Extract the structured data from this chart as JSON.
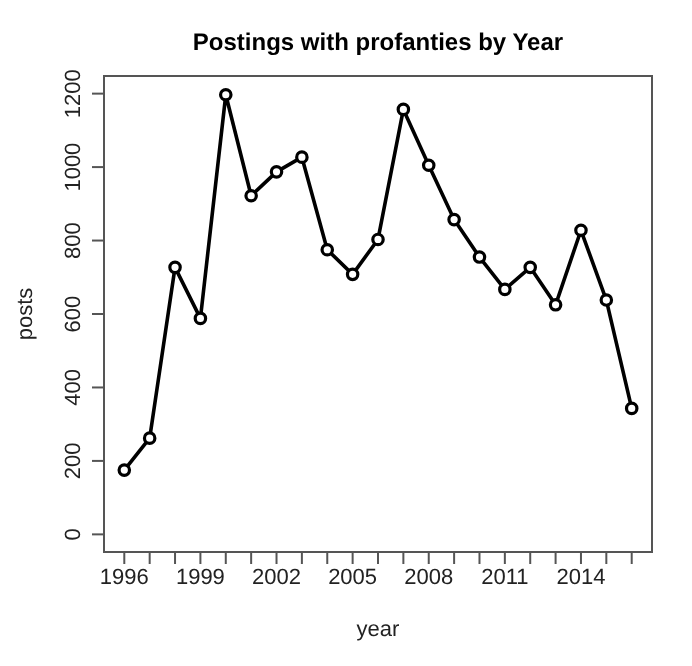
{
  "chart_data": {
    "type": "line",
    "title": "Postings with profanties by Year",
    "xlabel": "year",
    "ylabel": "posts",
    "x": [
      1996,
      1997,
      1998,
      1999,
      2000,
      2001,
      2002,
      2003,
      2004,
      2005,
      2006,
      2007,
      2008,
      2009,
      2010,
      2011,
      2012,
      2013,
      2014,
      2015,
      2016
    ],
    "series": [
      {
        "color": "#000000",
        "values": [
          175,
          262,
          727,
          588,
          1197,
          922,
          987,
          1027,
          775,
          708,
          803,
          1157,
          1005,
          857,
          755,
          667,
          727,
          625,
          828,
          638,
          343
        ]
      }
    ],
    "xlim": [
      1995.2,
      2016.8
    ],
    "xticks": [
      1996,
      {
        "value": 1997,
        "label": null
      },
      {
        "value": 1998,
        "label": null
      },
      1999,
      {
        "value": 2000,
        "label": null
      },
      {
        "value": 2001,
        "label": null
      },
      2002,
      {
        "value": 2003,
        "label": null
      },
      {
        "value": 2004,
        "label": null
      },
      2005,
      {
        "value": 2006,
        "label": null
      },
      {
        "value": 2007,
        "label": null
      },
      2008,
      {
        "value": 2009,
        "label": null
      },
      {
        "value": 2010,
        "label": null
      },
      2011,
      {
        "value": 2012,
        "label": null
      },
      {
        "value": 2013,
        "label": null
      },
      2014,
      {
        "value": 2015,
        "label": null
      },
      {
        "value": 2016,
        "label": null
      }
    ],
    "ylim": [
      -48,
      1248
    ],
    "yticks": [
      0,
      200,
      400,
      600,
      800,
      1000,
      1200
    ],
    "grid": false,
    "legend": false,
    "marker": "circle",
    "line_style": "solid"
  }
}
